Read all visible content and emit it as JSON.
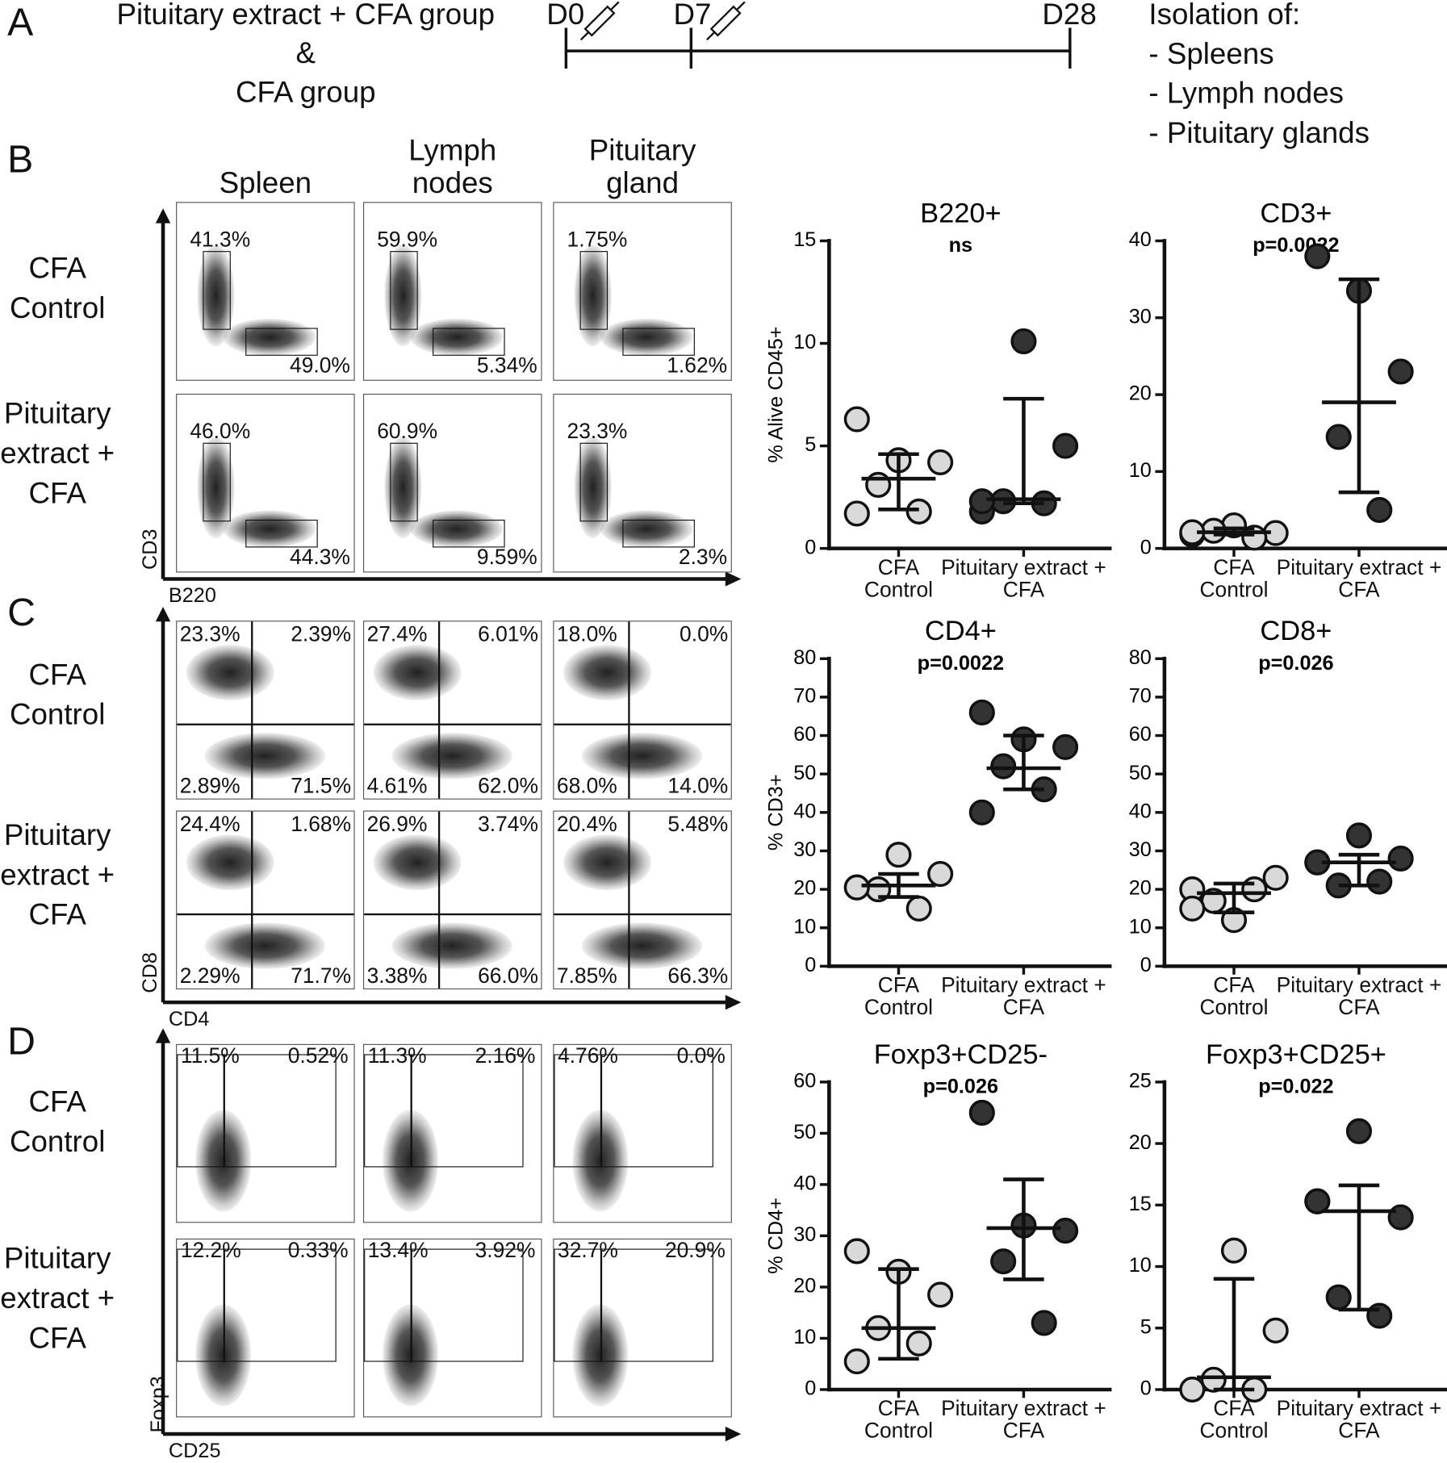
{
  "panel_labels": [
    "A",
    "B",
    "C",
    "D"
  ],
  "timeline": {
    "groups": [
      "Pituitary extract + CFA group",
      "&",
      "CFA group"
    ],
    "days": [
      "D0",
      "D7",
      "D28"
    ],
    "isolation": [
      "Isolation of:",
      "- Spleens",
      "- Lymph nodes",
      "- Pituitary glands"
    ]
  },
  "flow": {
    "columns": [
      "Spleen",
      "Lymph nodes",
      "Pituitary gland"
    ],
    "panels": [
      {
        "kind": "gates",
        "y_axis": "CD3",
        "x_axis": "B220",
        "rows": [
          {
            "name": "CFA Control",
            "gates": [
              [
                "41.3%",
                "49.0%"
              ],
              [
                "59.9%",
                "5.34%"
              ],
              [
                "1.75%",
                "1.62%"
              ]
            ]
          },
          {
            "name": "Pituitary extract + CFA",
            "gates": [
              [
                "46.0%",
                "44.3%"
              ],
              [
                "60.9%",
                "9.59%"
              ],
              [
                "23.3%",
                "2.3%"
              ]
            ]
          }
        ]
      },
      {
        "kind": "quadrants",
        "y_axis": "CD8",
        "x_axis": "CD4",
        "rows": [
          {
            "name": "CFA Control",
            "gates": [
              [
                "23.3%",
                "2.39%",
                "2.89%",
                "71.5%"
              ],
              [
                "27.4%",
                "6.01%",
                "4.61%",
                "62.0%"
              ],
              [
                "18.0%",
                "0.0%",
                "68.0%",
                "14.0%"
              ]
            ]
          },
          {
            "name": "Pituitary extract + CFA",
            "gates": [
              [
                "24.4%",
                "1.68%",
                "2.29%",
                "71.7%"
              ],
              [
                "26.9%",
                "3.74%",
                "3.38%",
                "66.0%"
              ],
              [
                "20.4%",
                "5.48%",
                "7.85%",
                "66.3%"
              ]
            ]
          }
        ]
      },
      {
        "kind": "foxp3",
        "y_axis": "Foxp3",
        "x_axis": "CD25",
        "rows": [
          {
            "name": "CFA Control",
            "gates": [
              [
                "11.5%",
                "0.52%"
              ],
              [
                "11.3%",
                "2.16%"
              ],
              [
                "4.76%",
                "0.0%"
              ]
            ]
          },
          {
            "name": "Pituitary extract + CFA",
            "gates": [
              [
                "12.2%",
                "0.33%"
              ],
              [
                "13.4%",
                "3.92%"
              ],
              [
                "32.7%",
                "20.9%"
              ]
            ]
          }
        ]
      }
    ]
  },
  "chart_data": [
    {
      "type": "scatter",
      "title": "B220+",
      "annotation": "ns",
      "y_label": "% Alive CD45+",
      "categories": [
        "CFA Control",
        "Pituitary extract + CFA"
      ],
      "ylim": [
        0,
        15
      ],
      "yticks": [
        0,
        5,
        10,
        15
      ],
      "series": [
        {
          "color": "#d9d9d9",
          "values": [
            6.3,
            4.3,
            4.2,
            3.1,
            1.8,
            1.7
          ],
          "center": 3.4,
          "range": [
            1.9,
            4.6
          ]
        },
        {
          "color": "#333333",
          "values": [
            1.8,
            10.1,
            5.0,
            2.3,
            2.2,
            2.3
          ],
          "center": 2.4,
          "range": [
            2.2,
            7.3
          ]
        }
      ]
    },
    {
      "type": "scatter",
      "title": "CD3+",
      "annotation": "p=0.0022",
      "categories": [
        "CFA Control",
        "Pituitary extract + CFA"
      ],
      "ylim": [
        0,
        40
      ],
      "yticks": [
        0,
        10,
        20,
        30,
        40
      ],
      "series": [
        {
          "color": "#d9d9d9",
          "values": [
            1.8,
            3.0,
            2.0,
            2.3,
            1.4,
            2.1
          ],
          "center": 2.1,
          "range": [
            1.8,
            2.6
          ]
        },
        {
          "color": "#333333",
          "values": [
            38,
            33.5,
            23,
            14.5,
            5
          ],
          "center": 19,
          "range": [
            7.3,
            35
          ]
        }
      ]
    },
    {
      "type": "scatter",
      "title": "CD4+",
      "annotation": "p=0.0022",
      "y_label": "% CD3+",
      "categories": [
        "CFA Control",
        "Pituitary extract + CFA"
      ],
      "ylim": [
        0,
        80
      ],
      "yticks": [
        0,
        10,
        20,
        30,
        40,
        50,
        60,
        70,
        80
      ],
      "series": [
        {
          "color": "#d9d9d9",
          "values": [
            20.5,
            29,
            24,
            20,
            15,
            20.5
          ],
          "center": 21,
          "range": [
            18,
            24
          ]
        },
        {
          "color": "#333333",
          "values": [
            66,
            59,
            57,
            52,
            46,
            40
          ],
          "center": 51.5,
          "range": [
            46,
            60
          ]
        }
      ]
    },
    {
      "type": "scatter",
      "title": "CD8+",
      "annotation": "p=0.026",
      "categories": [
        "CFA Control",
        "Pituitary extract + CFA"
      ],
      "ylim": [
        0,
        80
      ],
      "yticks": [
        0,
        10,
        20,
        30,
        40,
        50,
        60,
        70,
        80
      ],
      "series": [
        {
          "color": "#d9d9d9",
          "values": [
            20,
            12,
            23,
            17,
            20,
            15
          ],
          "center": 19,
          "range": [
            14,
            21.5
          ]
        },
        {
          "color": "#333333",
          "values": [
            27,
            34,
            28,
            21,
            22,
            27
          ],
          "center": 27,
          "range": [
            21,
            29
          ]
        }
      ]
    },
    {
      "type": "scatter",
      "title": "Foxp3+CD25-",
      "annotation": "p=0.026",
      "y_label": "% CD4+",
      "categories": [
        "CFA Control",
        "Pituitary extract + CFA"
      ],
      "ylim": [
        0,
        60
      ],
      "yticks": [
        0,
        10,
        20,
        30,
        40,
        50,
        60
      ],
      "series": [
        {
          "color": "#d9d9d9",
          "values": [
            27,
            23,
            18.5,
            12,
            9,
            5.5
          ],
          "center": 12,
          "range": [
            6,
            23.5
          ]
        },
        {
          "color": "#333333",
          "values": [
            54,
            32,
            31,
            25,
            13
          ],
          "center": 31.5,
          "range": [
            21.5,
            41
          ]
        }
      ]
    },
    {
      "type": "scatter",
      "title": "Foxp3+CD25+",
      "annotation": "p=0.022",
      "categories": [
        "CFA Control",
        "Pituitary extract + CFA"
      ],
      "ylim": [
        0,
        25
      ],
      "yticks": [
        0,
        5,
        10,
        15,
        20,
        25
      ],
      "series": [
        {
          "color": "#d9d9d9",
          "values": [
            0,
            11.3,
            4.8,
            0.8,
            0
          ],
          "center": 1,
          "range": [
            0,
            9
          ]
        },
        {
          "color": "#333333",
          "values": [
            15.3,
            21,
            14,
            7.5,
            6,
            15.3
          ],
          "center": 14.5,
          "range": [
            6.5,
            16.6
          ]
        }
      ]
    }
  ]
}
